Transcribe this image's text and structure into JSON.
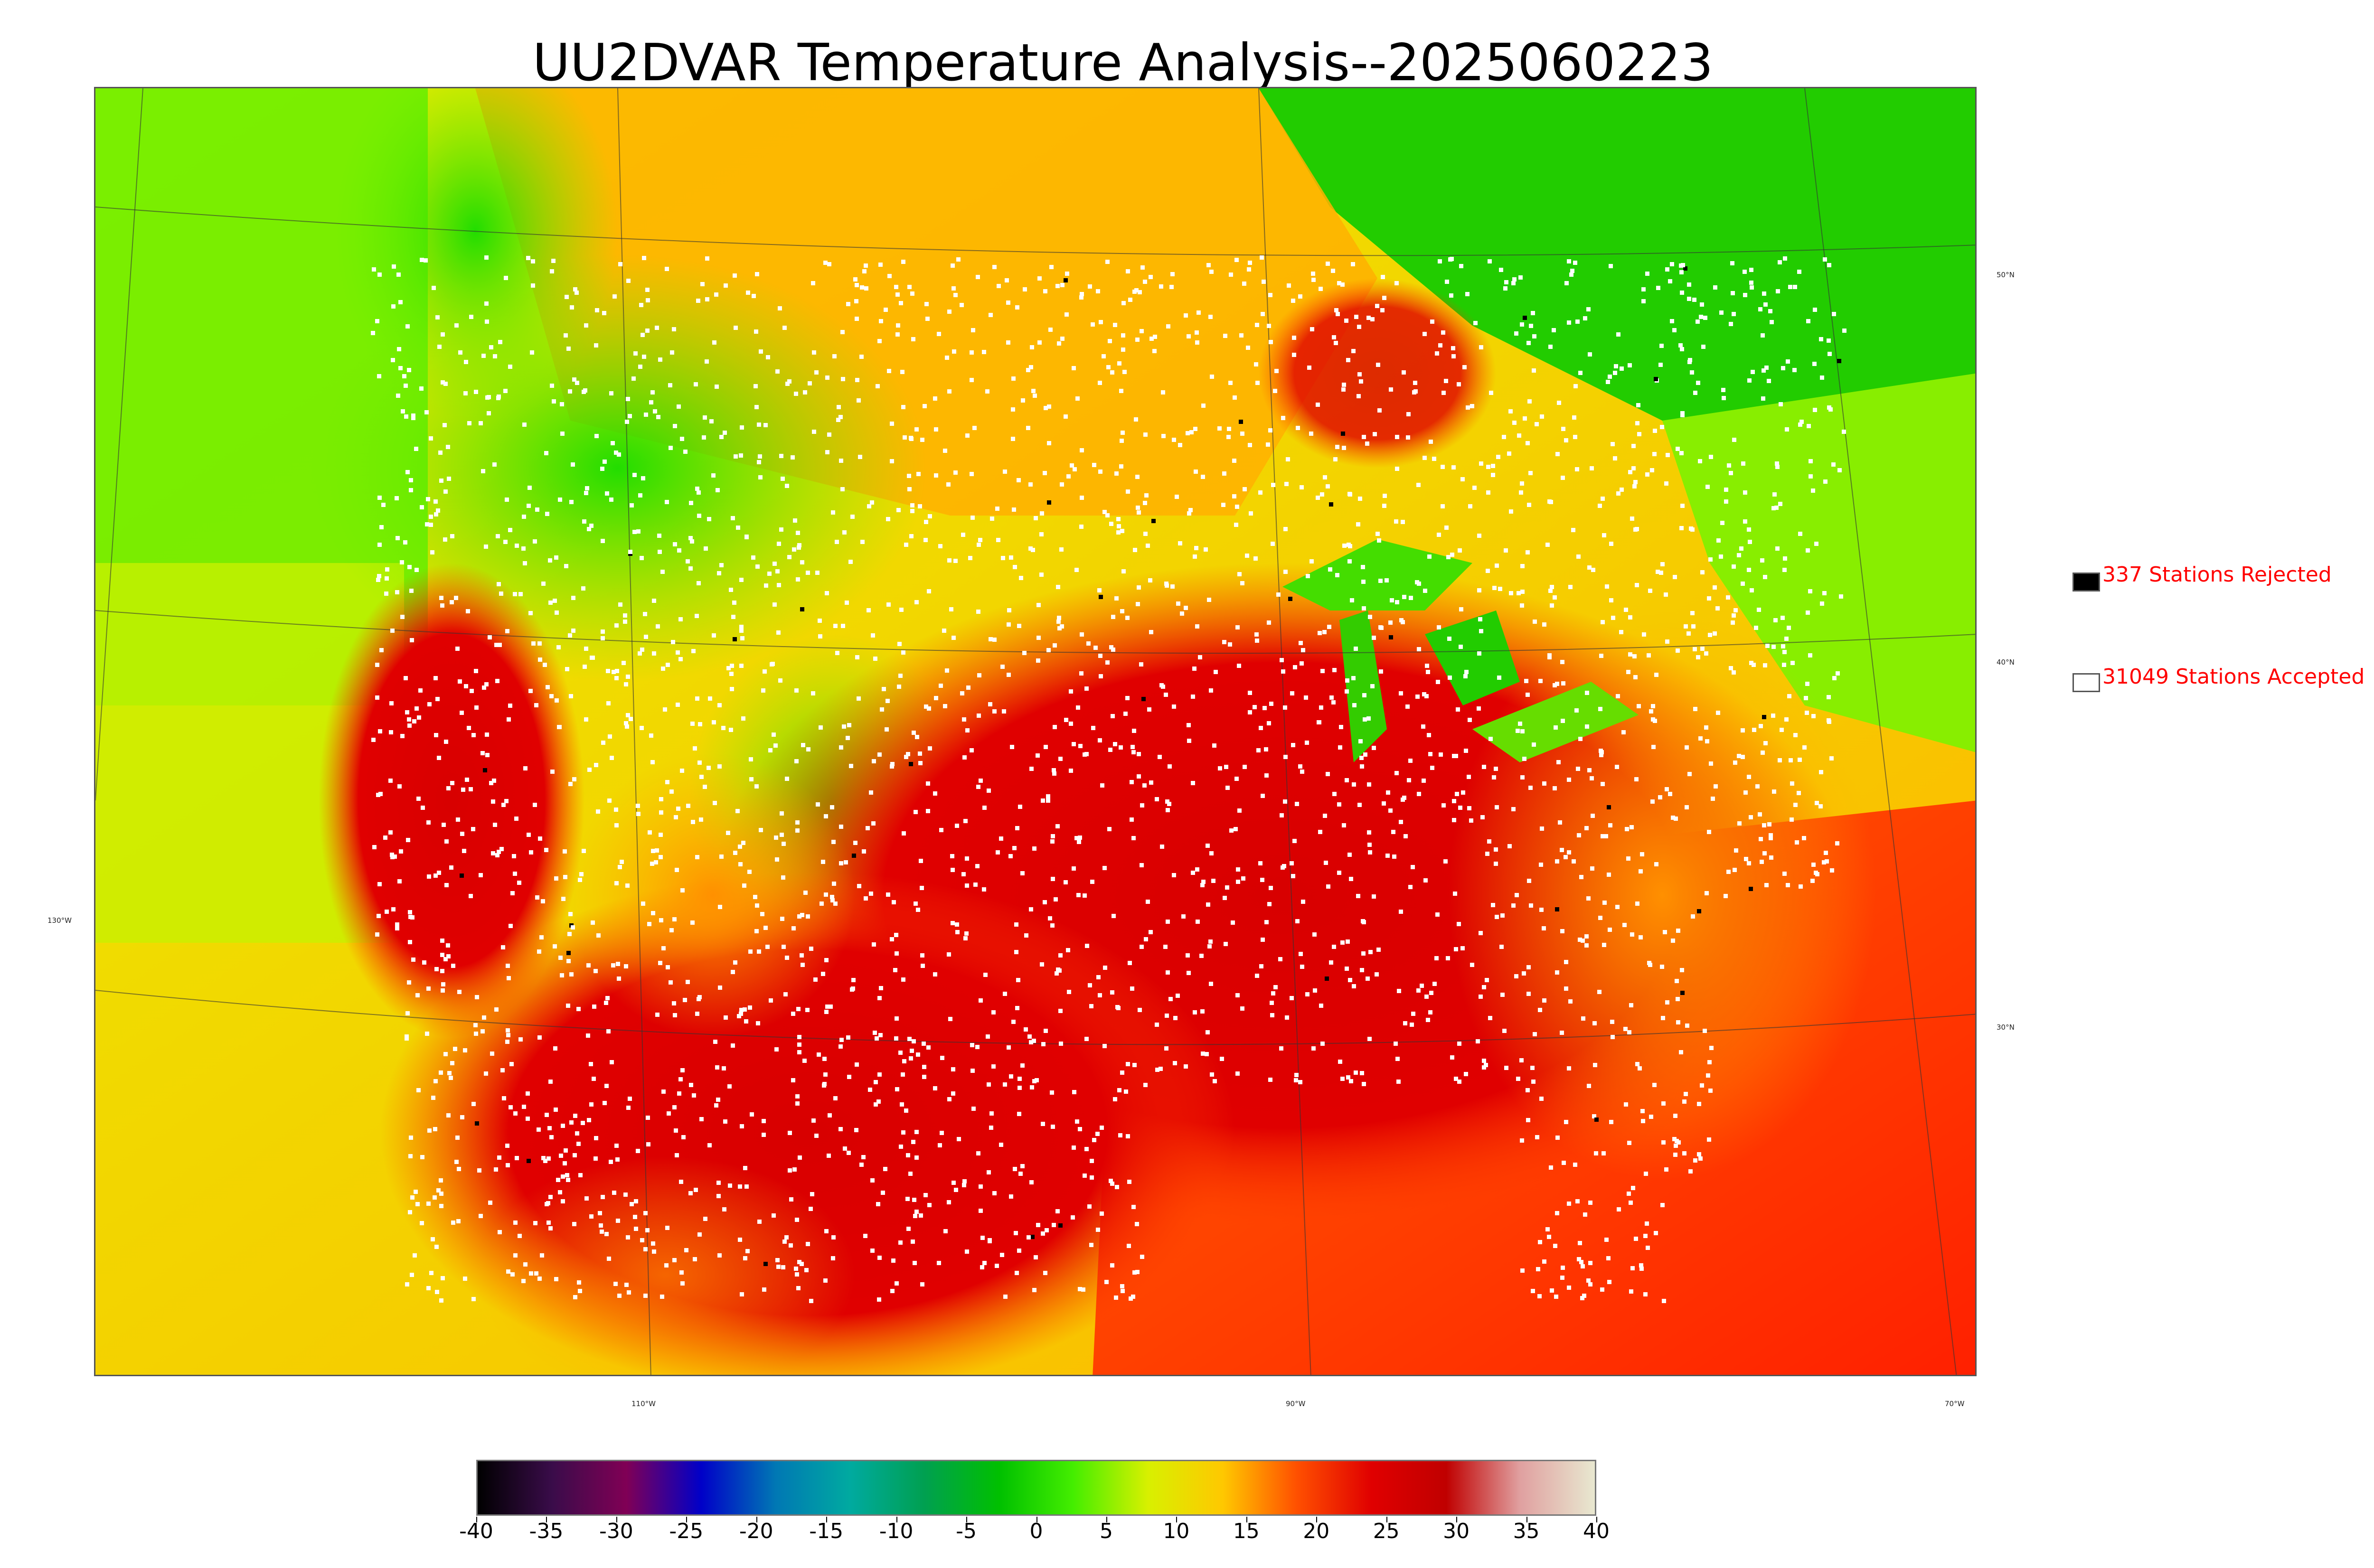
{
  "title": "UU2DVAR Temperature Analysis--2025060223",
  "map": {
    "lat_labels": [
      "50°N",
      "40°N",
      "30°N"
    ],
    "lon_labels": [
      "130°W",
      "110°W",
      "90°W",
      "70°W"
    ]
  },
  "legend": {
    "rejected": {
      "count": 337,
      "label": "337 Stations Rejected",
      "color": "#000000"
    },
    "accepted": {
      "count": 31049,
      "label": "31049 Stations Accepted",
      "color": "#ffffff"
    }
  },
  "colorbar": {
    "ticks": [
      "-40",
      "-35",
      "-30",
      "-25",
      "-20",
      "-15",
      "-10",
      "-5",
      "0",
      "5",
      "10",
      "15",
      "20",
      "25",
      "30",
      "35",
      "40"
    ],
    "min": -40,
    "max": 40,
    "colors": [
      "#000000",
      "#3a0c4a",
      "#800055",
      "#0000c8",
      "#0078b4",
      "#00aaa0",
      "#00a050",
      "#00c000",
      "#44ee00",
      "#d8f000",
      "#ffc800",
      "#ff5000",
      "#e00000",
      "#c00000",
      "#e0a0a0",
      "#e8e8d0"
    ]
  }
}
